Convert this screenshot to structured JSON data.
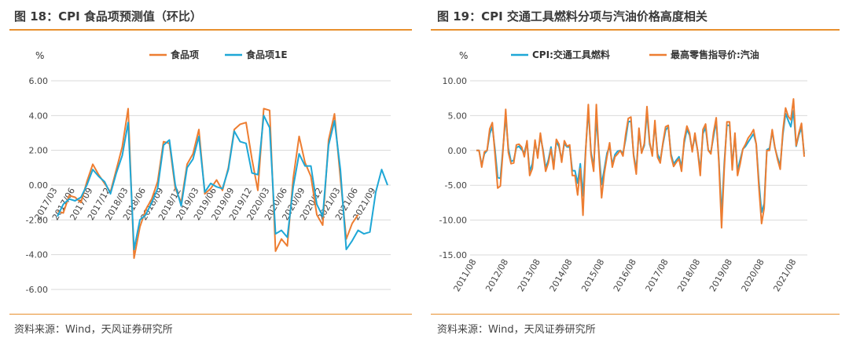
{
  "panels": [
    {
      "title": "图 18：CPI 食品项预测值（环比）",
      "source": "资料来源：Wind，天风证券研究所"
    },
    {
      "title": "图 19：CPI 交通工具燃料分项与汽油价格高度相关",
      "source": "资料来源：Wind，天风证券研究所"
    }
  ],
  "chart_data": [
    {
      "type": "line",
      "ylabel": "%",
      "ylim": [
        -6,
        6
      ],
      "y_ticks": [
        6,
        4,
        2,
        0,
        -2,
        -4,
        -6
      ],
      "y_tick_labels": [
        "6.00",
        "4.00",
        "2.00",
        "0.00",
        "-2.00",
        "-4.00",
        "-6.00"
      ],
      "x_tick_labels": [
        "2017/03",
        "2017/06",
        "2017/09",
        "2017/12",
        "2018/03",
        "2018/06",
        "2018/09",
        "2018/12",
        "2019/03",
        "2019/06",
        "2019/09",
        "2019/12",
        "2020/03",
        "2020/06",
        "2020/09",
        "2020/12",
        "2021/03",
        "2021/06",
        "2021/09"
      ],
      "x_tick_index": [
        0,
        3,
        6,
        9,
        12,
        15,
        18,
        21,
        24,
        27,
        30,
        33,
        36,
        39,
        42,
        45,
        48,
        51,
        54
      ],
      "legend_position": "top-right",
      "grid": "horizontal",
      "series": [
        {
          "name": "食品项",
          "color": "#ED7D31",
          "values": [
            -1.5,
            -1.6,
            -0.6,
            -0.7,
            -1.0,
            0.2,
            1.2,
            0.6,
            0.1,
            -0.4,
            0.9,
            2.2,
            4.4,
            -4.2,
            -2.4,
            -1.4,
            -0.8,
            0.2,
            2.5,
            2.4,
            -0.2,
            -1.0,
            1.2,
            1.8,
            3.2,
            -0.5,
            -0.2,
            0.3,
            -0.3,
            1.0,
            3.2,
            3.5,
            3.6,
            1.5,
            -0.3,
            4.4,
            4.3,
            -3.8,
            -3.1,
            -3.5,
            0.4,
            2.8,
            1.3,
            0.5,
            -1.7,
            -2.3,
            2.6,
            4.1,
            0.4,
            -3.1,
            -2.2,
            -1.7
          ]
        },
        {
          "name": "食品项1E",
          "color": "#1EA7D6",
          "values": [
            -1.8,
            -1.1,
            -0.8,
            -0.9,
            -0.7,
            0.0,
            0.9,
            0.5,
            0.2,
            -0.5,
            0.7,
            1.7,
            3.6,
            -3.7,
            -2.0,
            -1.7,
            -1.0,
            -0.2,
            2.3,
            2.6,
            0.0,
            -1.2,
            1.0,
            1.5,
            2.8,
            -0.4,
            0.1,
            -0.1,
            -0.2,
            0.9,
            3.1,
            2.5,
            2.4,
            0.7,
            0.6,
            4.0,
            3.3,
            -2.8,
            -2.6,
            -3.0,
            -0.1,
            1.8,
            1.1,
            1.1,
            -1.1,
            -1.8,
            2.3,
            3.7,
            0.9,
            -3.7,
            -3.2,
            -2.6,
            -2.8,
            -2.7,
            -0.4,
            0.9,
            0.0
          ]
        }
      ]
    },
    {
      "type": "line",
      "ylabel": "%",
      "ylim": [
        -15,
        10
      ],
      "y_ticks": [
        10,
        5,
        0,
        -5,
        -10,
        -15
      ],
      "y_tick_labels": [
        "10.00",
        "5.00",
        "0.00",
        "-5.00",
        "-10.00",
        "-15.00"
      ],
      "x_tick_labels": [
        "2011/08",
        "2012/08",
        "2013/08",
        "2014/08",
        "2015/08",
        "2016/08",
        "2017/08",
        "2018/08",
        "2019/08",
        "2020/08",
        "2021/08"
      ],
      "x_tick_index": [
        0,
        12,
        24,
        36,
        48,
        60,
        72,
        84,
        96,
        108,
        120
      ],
      "legend_position": "top-center",
      "grid": "horizontal",
      "series": [
        {
          "name": "CPI:交通工具燃料",
          "color": "#1EA7D6",
          "values": [
            0.0,
            0.0,
            -2.1,
            -0.5,
            0.0,
            2.4,
            3.4,
            0.1,
            -3.9,
            -4.0,
            0.4,
            4.8,
            0.3,
            -1.6,
            -1.4,
            0.4,
            0.6,
            0.1,
            -0.3,
            1.2,
            -3.0,
            -1.9,
            1.1,
            -0.6,
            2.0,
            0.1,
            -2.5,
            -1.4,
            0.5,
            -2.2,
            1.3,
            0.5,
            -1.3,
            1.0,
            0.5,
            0.5,
            -2.9,
            -2.9,
            -4.7,
            -1.9,
            -6.5,
            0.1,
            5.8,
            -0.2,
            -2.4,
            4.6,
            -0.4,
            -4.9,
            -2.7,
            -0.4,
            0.6,
            -2.0,
            -0.6,
            -0.1,
            0.0,
            -0.4,
            1.6,
            4.1,
            4.2,
            -0.6,
            -2.8,
            2.7,
            -0.3,
            0.7,
            5.5,
            0.9,
            -0.4,
            3.8,
            -0.5,
            -1.4,
            0.9,
            2.9,
            3.4,
            -0.5,
            -1.9,
            -1.4,
            -0.9,
            -2.3,
            1.1,
            3.0,
            2.2,
            0.1,
            2.0,
            0.0,
            -2.8,
            2.4,
            3.3,
            0.0,
            -0.2,
            2.0,
            4.2,
            -1.4,
            -9.3,
            -1.9,
            3.6,
            3.6,
            -2.1,
            2.0,
            -2.9,
            -1.3,
            0.2,
            0.6,
            1.2,
            1.8,
            2.4,
            0.9,
            -4.5,
            -8.9,
            -7.6,
            0.1,
            0.3,
            2.7,
            0.4,
            -1.0,
            -2.2,
            2.3,
            5.3,
            4.3,
            3.4,
            5.7,
            0.6,
            2.2,
            3.3,
            -0.5
          ]
        },
        {
          "name": "最高零售指导价:汽油",
          "color": "#ED7D31",
          "values": [
            0.0,
            0.0,
            -2.4,
            -0.2,
            0.0,
            3.1,
            4.0,
            -0.6,
            -5.4,
            -5.1,
            0.1,
            5.9,
            -0.3,
            -1.9,
            -1.8,
            0.8,
            0.9,
            0.5,
            -0.9,
            1.4,
            -3.6,
            -2.6,
            1.5,
            -1.1,
            2.5,
            -0.2,
            -3.0,
            -1.8,
            0.2,
            -2.7,
            1.6,
            0.9,
            -1.7,
            1.4,
            0.6,
            0.8,
            -3.6,
            -3.6,
            -6.4,
            -2.6,
            -9.3,
            -0.1,
            6.6,
            -0.6,
            -3.0,
            6.6,
            -0.9,
            -6.8,
            -3.3,
            -0.9,
            1.1,
            -2.4,
            -0.9,
            -0.5,
            0.0,
            -0.8,
            2.3,
            4.6,
            4.8,
            -0.8,
            -3.4,
            3.2,
            -0.4,
            1.0,
            6.3,
            1.2,
            -0.8,
            4.3,
            -1.0,
            -1.8,
            1.1,
            3.4,
            3.6,
            -0.8,
            -2.3,
            -1.7,
            -1.2,
            -3.0,
            1.6,
            3.5,
            2.5,
            -0.2,
            2.5,
            0.0,
            -3.6,
            3.0,
            3.8,
            0.0,
            -0.5,
            2.6,
            4.7,
            -1.8,
            -11.1,
            -2.6,
            4.1,
            4.1,
            -2.8,
            2.5,
            -3.6,
            -1.9,
            0.2,
            0.9,
            1.8,
            2.3,
            3.0,
            0.9,
            -5.3,
            -10.5,
            -8.3,
            0.0,
            0.0,
            3.0,
            0.5,
            -1.3,
            -2.7,
            2.8,
            6.1,
            4.9,
            4.4,
            7.4,
            0.7,
            2.5,
            3.9,
            -0.9
          ]
        }
      ]
    }
  ]
}
